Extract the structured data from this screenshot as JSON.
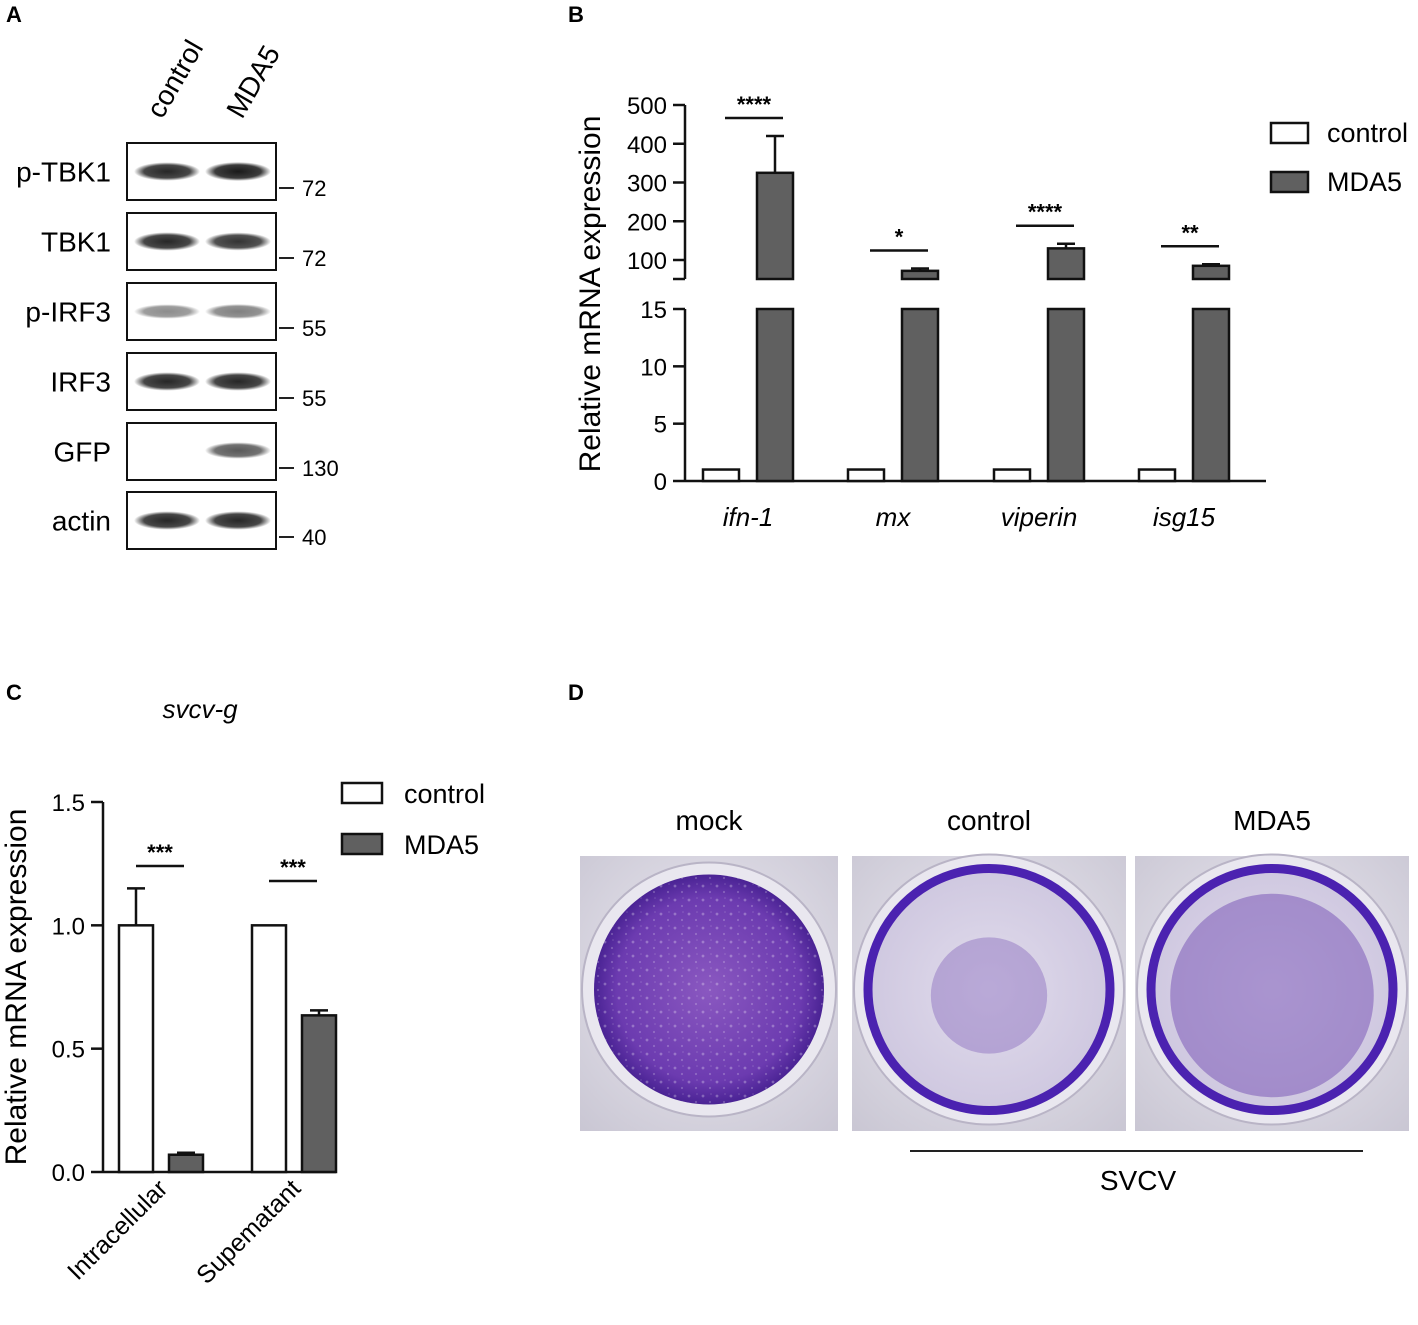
{
  "panel_labels": {
    "a": "A",
    "b": "B",
    "c": "C",
    "d": "D"
  },
  "panel_a": {
    "lane_labels": [
      "control",
      "MDA5"
    ],
    "blots": [
      {
        "label": "p-TBK1",
        "mw": "72",
        "control_intensity": 0.85,
        "mda5_intensity": 0.9
      },
      {
        "label": "TBK1",
        "mw": "72",
        "control_intensity": 0.85,
        "mda5_intensity": 0.8
      },
      {
        "label": "p-IRF3",
        "mw": "55",
        "control_intensity": 0.45,
        "mda5_intensity": 0.5
      },
      {
        "label": "IRF3",
        "mw": "55",
        "control_intensity": 0.85,
        "mda5_intensity": 0.85
      },
      {
        "label": "GFP",
        "mw": "130",
        "control_intensity": 0.0,
        "mda5_intensity": 0.65
      },
      {
        "label": "actin",
        "mw": "40",
        "control_intensity": 0.85,
        "mda5_intensity": 0.85
      }
    ]
  },
  "legend": {
    "control": "control",
    "mda5": "MDA5"
  },
  "colors": {
    "control_fill": "#ffffff",
    "mda5_fill": "#606060",
    "axis": "#111111"
  },
  "chart_data": [
    {
      "panel": "B",
      "type": "bar",
      "ylabel": "Relative mRNA expression",
      "y_axis_break": true,
      "y_ticks_lower": [
        "0",
        "5",
        "10",
        "15"
      ],
      "y_ticks_upper": [
        "100",
        "200",
        "300",
        "400",
        "500"
      ],
      "categories": [
        "ifn-1",
        "mx",
        "viperin",
        "isg15"
      ],
      "series": [
        {
          "name": "control",
          "values": [
            1,
            1,
            1,
            1
          ],
          "errors": [
            0,
            0,
            0,
            0
          ]
        },
        {
          "name": "MDA5",
          "values": [
            325,
            72,
            130,
            85
          ],
          "errors": [
            95,
            6,
            12,
            4
          ]
        }
      ],
      "significance": [
        "****",
        "*",
        "****",
        "**"
      ],
      "legend_position": "top-right"
    },
    {
      "panel": "C",
      "type": "bar",
      "title": "svcv-g",
      "ylabel": "Relative mRNA expression",
      "ylim": [
        0,
        1.5
      ],
      "y_ticks": [
        "0.0",
        "0.5",
        "1.0",
        "1.5"
      ],
      "categories": [
        "Intracellular",
        "Supematant"
      ],
      "series": [
        {
          "name": "control",
          "values": [
            1.0,
            1.0
          ],
          "errors": [
            0.15,
            0.0
          ]
        },
        {
          "name": "MDA5",
          "values": [
            0.07,
            0.635
          ],
          "errors": [
            0.008,
            0.02
          ]
        }
      ],
      "significance": [
        "***",
        "***"
      ],
      "legend_position": "top-right"
    }
  ],
  "panel_d": {
    "wells": [
      {
        "label": "mock",
        "cell_coverage": 1.0
      },
      {
        "label": "control",
        "cell_coverage": 0.35
      },
      {
        "label": "MDA5",
        "cell_coverage": 0.75
      }
    ],
    "treatment_label": "SVCV"
  }
}
